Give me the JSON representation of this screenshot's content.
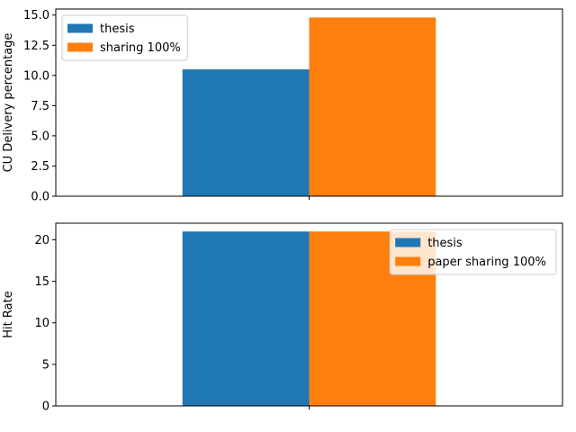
{
  "colors": {
    "series_1": "#1f77b4",
    "series_2": "#ff7f0e",
    "axes": "#000000",
    "legend_border": "#cccccc"
  },
  "chart_data": [
    {
      "type": "bar",
      "categories": [
        ""
      ],
      "series": [
        {
          "name": "thesis",
          "values": [
            10.5
          ]
        },
        {
          "name": "sharing 100%",
          "values": [
            14.8
          ]
        }
      ],
      "title": "",
      "xlabel": "",
      "ylabel": "CU Delivery percentage",
      "ylim": [
        0,
        15.5
      ],
      "yticks": [
        0.0,
        2.5,
        5.0,
        7.5,
        10.0,
        12.5,
        15.0
      ],
      "ytick_labels": [
        "0.0",
        "2.5",
        "5.0",
        "7.5",
        "10.0",
        "12.5",
        "15.0"
      ],
      "grid": false,
      "legend_position": "top-left"
    },
    {
      "type": "bar",
      "categories": [
        ""
      ],
      "series": [
        {
          "name": "thesis",
          "values": [
            21
          ]
        },
        {
          "name": "paper sharing 100%",
          "values": [
            21
          ]
        }
      ],
      "title": "",
      "xlabel": "",
      "ylabel": "Hit Rate",
      "ylim": [
        0,
        22
      ],
      "yticks": [
        0,
        5,
        10,
        15,
        20
      ],
      "ytick_labels": [
        "0",
        "5",
        "10",
        "15",
        "20"
      ],
      "grid": false,
      "legend_position": "top-right"
    }
  ]
}
